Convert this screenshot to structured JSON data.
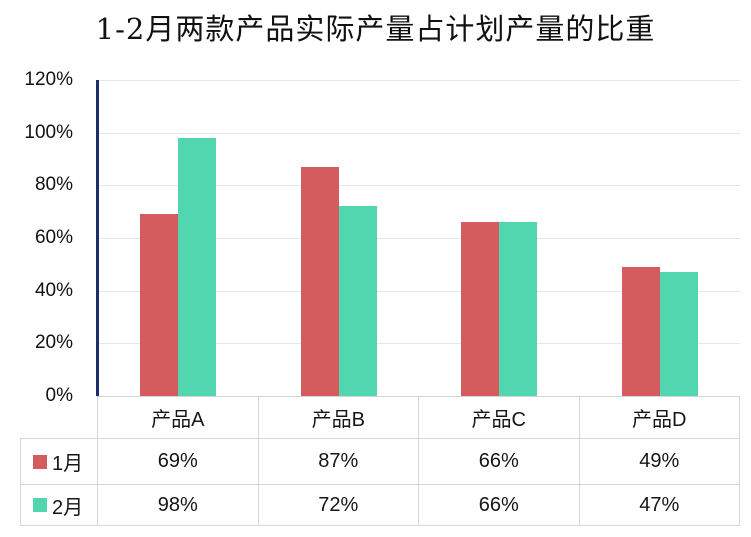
{
  "title": "1-2月两款产品实际产量占计划产量的比重",
  "colors": {
    "series1": "#d45c5e",
    "series2": "#52d6b0",
    "y_axis_line": "#1c2e70",
    "gridline": "#e6e6e6",
    "table_border": "#d6d6d6",
    "text": "#111111"
  },
  "chart_data": {
    "type": "bar",
    "title": "1-2月两款产品实际产量占计划产量的比重",
    "categories": [
      "产品A",
      "产品B",
      "产品C",
      "产品D"
    ],
    "series": [
      {
        "name": "1月",
        "color": "#d45c5e",
        "values": [
          69,
          87,
          66,
          49
        ],
        "labels": [
          "69%",
          "87%",
          "66%",
          "49%"
        ]
      },
      {
        "name": "2月",
        "color": "#52d6b0",
        "values": [
          98,
          72,
          66,
          47
        ],
        "labels": [
          "98%",
          "72%",
          "66%",
          "47%"
        ]
      }
    ],
    "xlabel": "",
    "ylabel": "",
    "y_axis": {
      "min": 0,
      "max": 120,
      "tick_values": [
        0,
        20,
        40,
        60,
        80,
        100,
        120
      ],
      "tick_labels": [
        "0%",
        "20%",
        "40%",
        "60%",
        "80%",
        "100%",
        "120%"
      ]
    },
    "grid": true,
    "legend_position": "data-table",
    "data_table_shown": true
  }
}
